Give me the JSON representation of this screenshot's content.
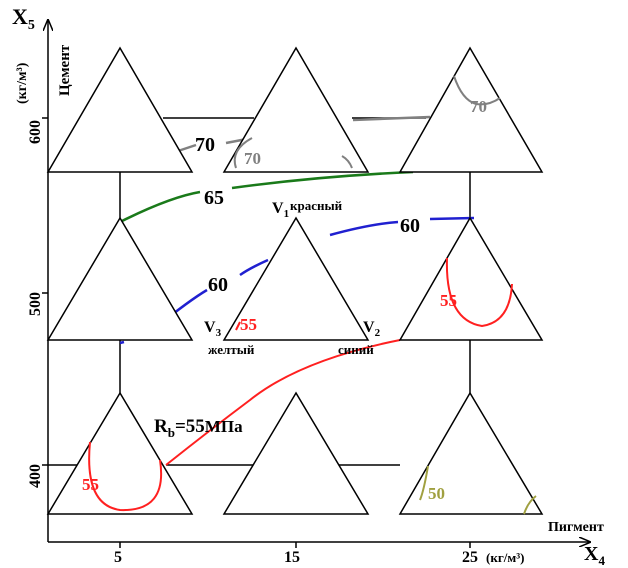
{
  "axes": {
    "x_var": "X",
    "x_var_sub": "4",
    "x_name": "Пигмент",
    "x_unit": "(кг/м³)",
    "x_ticks": [
      "5",
      "15",
      "25"
    ],
    "y_var": "X",
    "y_var_sub": "5",
    "y_name": "Цемент",
    "y_unit": "(кг/м³)",
    "y_ticks": [
      "400",
      "500",
      "600"
    ]
  },
  "center_triangle": {
    "v1": "V",
    "v1_sub": "1",
    "v1_name": "красный",
    "v2": "V",
    "v2_sub": "2",
    "v2_name": "синий",
    "v3": "V",
    "v3_sub": "3",
    "v3_name": "желтый"
  },
  "legend": {
    "rb": "R",
    "rb_sub": "b",
    "rb_value": "=55",
    "rb_unit": "МПа"
  },
  "contours": [
    {
      "id": "70",
      "label": "70",
      "color": "#808080"
    },
    {
      "id": "65",
      "label": "65",
      "color": "#1a7a1a"
    },
    {
      "id": "60",
      "label": "60",
      "color": "#2020d0"
    },
    {
      "id": "55",
      "label": "55",
      "color": "#ff2020"
    },
    {
      "id": "50",
      "label": "50",
      "color": "#a0a040"
    }
  ],
  "triangle_labels": {
    "top_center_70": "70",
    "top_right_70": "70",
    "mid_center_55": "55",
    "mid_right_55": "55",
    "bottom_left_55": "55",
    "bottom_right_50": "50"
  },
  "colors": {
    "gray": "#808080",
    "green": "#1a7a1a",
    "blue": "#2020d0",
    "red": "#ff2020",
    "olive": "#a0a040",
    "black": "#000000"
  }
}
